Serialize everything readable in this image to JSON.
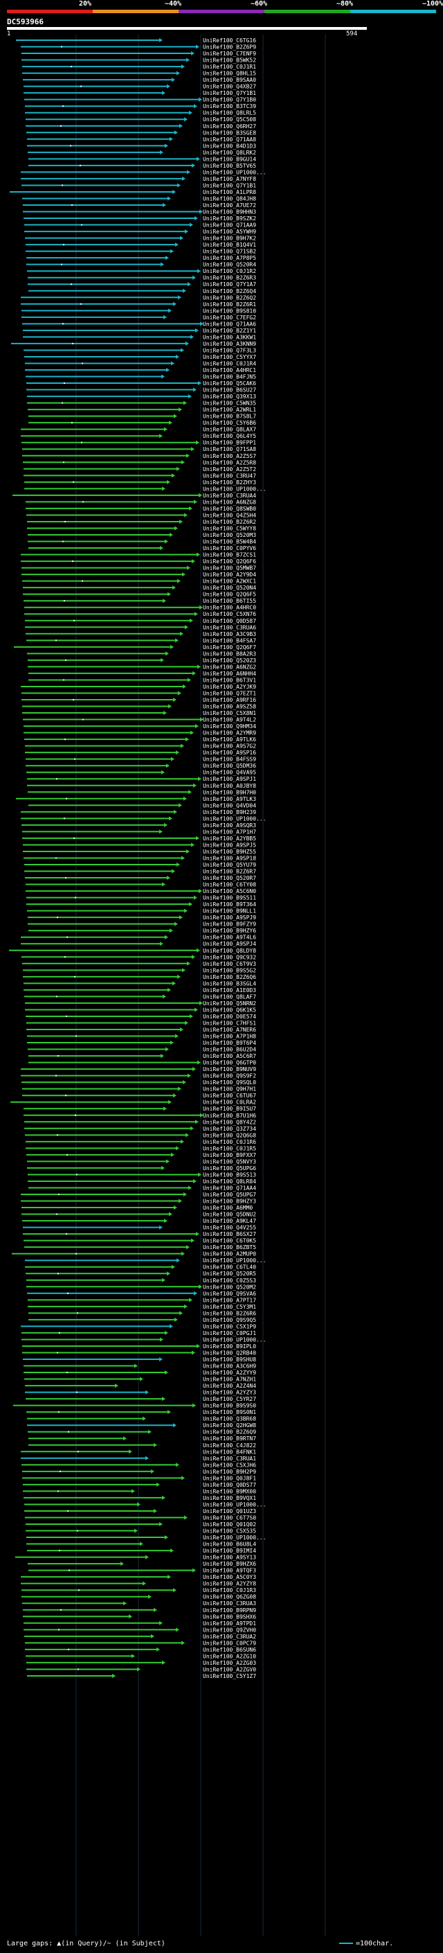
{
  "legend": {
    "labels": [
      "20%",
      "~40%",
      "~60%",
      "~80%",
      "~100%"
    ],
    "colors": [
      "#e11b1b",
      "#e8911e",
      "#8a28b8",
      "#1ea91e",
      "#1ab5c8"
    ]
  },
  "query": {
    "id": "DC593966",
    "start": "1",
    "end": "594"
  },
  "hit_colors": {
    "cyan": "#1ab5c8",
    "green": "#33cc33"
  },
  "hits": [
    "UniRef100_C6TG16",
    "UniRef100_B2Z6P9",
    "UniRef100_C7ENF9",
    "UniRef100_B5WK52",
    "UniRef100_C0J1R1",
    "UniRef100_Q8HL15",
    "UniRef100_B9SAA0",
    "UniRef100_Q4XB27",
    "UniRef100_Q7Y1B1",
    "UniRef100_Q7Y1B0",
    "UniRef100_B3TC39",
    "UniRef100_Q8LRL5",
    "UniRef100_Q5C508",
    "UniRef100_Q6RH27",
    "UniRef100_B3SGE8",
    "UniRef100_Q71AA8",
    "UniRef100_B4D1D3",
    "UniRef100_Q8LRK2",
    "UniRef100_B9GU14",
    "UniRef100_B5TV65",
    "UniRef100_UP1000...",
    "UniRef100_A7NYF8",
    "UniRef100_Q7Y1B1",
    "UniRef100_A1LPR8",
    "UniRef100_Q84JH8",
    "UniRef100_A7UE72",
    "UniRef100_B9HHN3",
    "UniRef100_B9SZK2",
    "UniRef100_Q71AA9",
    "UniRef100_A5YWH9",
    "UniRef100_B9H7K2",
    "UniRef100_B1Q4V1",
    "UniRef100_Q71SB2",
    "UniRef100_A7P8P5",
    "UniRef100_Q520R4",
    "UniRef100_C0J1R2",
    "UniRef100_B2Z6R3",
    "UniRef100_Q7Y1A7",
    "UniRef100_B2Z6Q4",
    "UniRef100_B2Z6Q2",
    "UniRef100_B2Z6R1",
    "UniRef100_B9S810",
    "UniRef100_C7EFG2",
    "UniRef100_Q71AA6",
    "UniRef100_B2Z1Y1",
    "UniRef100_A3KKW1",
    "UniRef100_A3KNN9",
    "UniRef100_Q7F3L3",
    "UniRef100_C5YYX7",
    "UniRef100_C0J1R4",
    "UniRef100_A4HRC1",
    "UniRef100_B4FJN5",
    "UniRef100_Q5CAK6",
    "UniRef100_B6SU27",
    "UniRef100_Q39X13",
    "UniRef100_C5WN35",
    "UniRef100_A2WRL1",
    "UniRef100_B7S8L7",
    "UniRef100_C5Y6B6",
    "UniRef100_Q8LAX7",
    "UniRef100_Q6L4Y5",
    "UniRef100_B9FPP1",
    "UniRef100_Q71SA8",
    "UniRef100_A2Z5S7",
    "UniRef100_A2Z5R8",
    "UniRef100_A2Z5T2",
    "UniRef100_C3RU47",
    "UniRef100_B2ZHY3",
    "UniRef100_UP1000...",
    "UniRef100_C3RUA4",
    "UniRef100_A6NZG8",
    "UniRef100_Q8SWB0",
    "UniRef100_Q4Z5H4",
    "UniRef100_B2Z6R2",
    "UniRef100_C5WYY8",
    "UniRef100_Q520M3",
    "UniRef100_B5W4B4",
    "UniRef100_C0PYV6",
    "UniRef100_B7ZCS1",
    "UniRef100_Q2Q6F6",
    "UniRef100_Q5MWB7",
    "UniRef100_A2Y9D4",
    "UniRef100_A2WXC1",
    "UniRef100_Q520N4",
    "UniRef100_Q2Q6F5",
    "UniRef100_B6TI55",
    "UniRef100_A4HRC0",
    "UniRef100_C5XN76",
    "UniRef100_Q0D587",
    "UniRef100_C3RUA6",
    "UniRef100_A3C9B3",
    "UniRef100_B4FSA7",
    "UniRef100_Q2Q6F7",
    "UniRef100_B8A2R3",
    "UniRef100_Q520Z3",
    "UniRef100_A6NZG2",
    "UniRef100_A6NHH4",
    "UniRef100_B6T3V1",
    "UniRef100_A2YJK9",
    "UniRef100_Q7EZT1",
    "UniRef100_A9RF16",
    "UniRef100_A9SZ58",
    "UniRef100_C5X8N1",
    "UniRef100_A9T4L2",
    "UniRef100_Q9HM34",
    "UniRef100_A2YMR9",
    "UniRef100_A9TLK6",
    "UniRef100_A9S7G2",
    "UniRef100_A9SP16",
    "UniRef100_B4FSS9",
    "UniRef100_Q5DM36",
    "UniRef100_Q4VA95",
    "UniRef100_A9SPJ1",
    "UniRef100_A0JBY8",
    "UniRef100_B9H7H0",
    "UniRef100_A9TLK3",
    "UniRef100_Q4VD04",
    "UniRef100_B9H239",
    "UniRef100_UP1000...",
    "UniRef100_A9SQR3",
    "UniRef100_A7P1H7",
    "UniRef100_A2YBB5",
    "UniRef100_A9SPJ5",
    "UniRef100_B9HZ55",
    "UniRef100_A9SP18",
    "UniRef100_Q5YU79",
    "UniRef100_B2Z6R7",
    "UniRef100_Q520R7",
    "UniRef100_C6TY08",
    "UniRef100_A5C6N0",
    "UniRef100_B9S511",
    "UniRef100_B9T364",
    "UniRef100_B9NLL1",
    "UniRef100_A9SPJ9",
    "UniRef100_B9FZY9",
    "UniRef100_B9HZY6",
    "UniRef100_A9T4L6",
    "UniRef100_A9SPJ4",
    "UniRef100_Q8LDY8",
    "UniRef100_Q9C932",
    "UniRef100_C6T9V3",
    "UniRef100_B9S5G2",
    "UniRef100_B2Z6Q6",
    "UniRef100_B3SGL4",
    "UniRef100_A1E0D3",
    "UniRef100_Q8LAF7",
    "UniRef100_Q5NRN2",
    "UniRef100_Q6K1K5",
    "UniRef100_D0E574",
    "UniRef100_C7HFS1",
    "UniRef100_A7NER6",
    "UniRef100_A7P1H8",
    "UniRef100_B9T6P4",
    "UniRef100_B6U2D4",
    "UniRef100_A5C6R7",
    "UniRef100_Q6GTP0",
    "UniRef100_B9NUV9",
    "UniRef100_Q9S9F2",
    "UniRef100_Q9SQL0",
    "UniRef100_Q9H7H1",
    "UniRef100_C6TU67",
    "UniRef100_C0LRA2",
    "UniRef100_B9I5U7",
    "UniRef100_B7U1H6",
    "UniRef100_Q8Y4Z2",
    "UniRef100_Q3Z734",
    "UniRef100_Q2Q6G8",
    "UniRef100_C0J1R6",
    "UniRef100_C0J1R5",
    "UniRef100_B9FXX7",
    "UniRef100_Q5NVY3",
    "UniRef100_Q5UPG6",
    "UniRef100_B9S513",
    "UniRef100_Q8LR84",
    "UniRef100_Q71AA4",
    "UniRef100_Q5UPG7",
    "UniRef100_B9HZY3",
    "UniRef100_A6MM0",
    "UniRef100_Q5DNU2",
    "UniRef100_A9KL47",
    "UniRef100_Q4V255",
    "UniRef100_B6SX27",
    "UniRef100_C6T0K5",
    "UniRef100_B6ZBT5",
    "UniRef100_A2MUP0",
    "UniRef100_UP1000...",
    "UniRef100_C6TL40",
    "UniRef100_Q520R5",
    "UniRef100_C0Z5S3",
    "UniRef100_Q520M2",
    "UniRef100_Q9SVA6",
    "UniRef100_A7PT17",
    "UniRef100_C5Y3M1",
    "UniRef100_B2Z6R6",
    "UniRef100_Q9S9Q5",
    "UniRef100_C5X1P9",
    "UniRef100_C0PGJ1",
    "UniRef100_UP1000...",
    "UniRef100_B9IPL0",
    "UniRef100_Q2RB40",
    "UniRef100_B9SHU8",
    "UniRef100_A3C6H9",
    "UniRef100_A2ZYY9",
    "UniRef100_A7NZH1",
    "UniRef100_A2Z4N4",
    "UniRef100_A2YZY3",
    "UniRef100_C5YR27",
    "UniRef100_B9S9S0",
    "UniRef100_B9S0N1",
    "UniRef100_Q3BR68",
    "UniRef100_Q2HGW8",
    "UniRef100_B2Z6Q9",
    "UniRef100_B9RTN7",
    "UniRef100_C4J822",
    "UniRef100_B4FNK1",
    "UniRef100_C3RUA1",
    "UniRef100_C5XJH6",
    "UniRef100_B9H2P9",
    "UniRef100_Q0J8F1",
    "UniRef100_Q0DS77",
    "UniRef100_B9MX00",
    "UniRef100_B9VQX1",
    "UniRef100_UP1000...",
    "UniRef100_Q01UZ3",
    "UniRef100_C6T7S0",
    "UniRef100_Q01Q02",
    "UniRef100_C5X535",
    "UniRef100_UP1000...",
    "UniRef100_B6U8L4",
    "UniRef100_B9IMI4",
    "UniRef100_A9SY13",
    "UniRef100_B9HZX6",
    "UniRef100_A9TQF3",
    "UniRef100_A5C0Y3",
    "UniRef100_A2YZY8",
    "UniRef100_C0J1R3",
    "UniRef100_Q6ZG08",
    "UniRef100_C3RUA3",
    "UniRef100_B9RPN9",
    "UniRef100_B9SHX6",
    "UniRef100_A9TPD1",
    "UniRef100_Q9ZVH0",
    "UniRef100_C3RUA2",
    "UniRef100_C0PC79",
    "UniRef100_B6SUN6",
    "UniRef100_A2ZG10",
    "UniRef100_A2ZG03",
    "UniRef100_A2ZGV0",
    "UniRef100_C5Y1Z7"
  ],
  "footer": {
    "left": "Large gaps: ▲(in Query)/~ (in Subject)",
    "right": "=100char."
  }
}
